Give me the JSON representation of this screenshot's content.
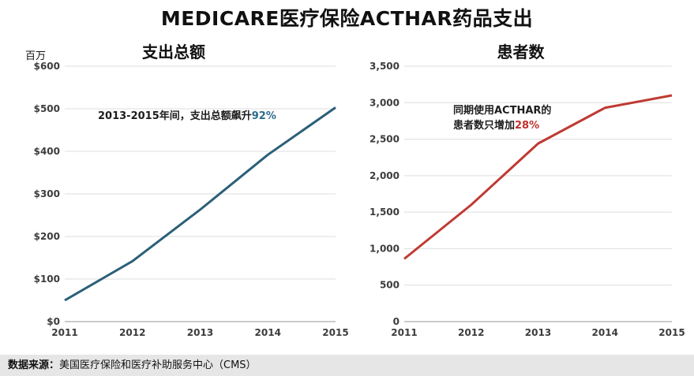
{
  "title": "MEDICARE医疗保险ACTHAR药品支出",
  "footer": {
    "label": "数据来源：",
    "text": "美国医疗保险和医疗补助服务中心（CMS）"
  },
  "chart_data": [
    {
      "type": "line",
      "title": "支出总额",
      "unit_label": "百万",
      "x": [
        2011,
        2012,
        2013,
        2014,
        2015
      ],
      "y_tick_labels": [
        "$0",
        "$100",
        "$200",
        "$300",
        "$400",
        "$500",
        "$600"
      ],
      "ylim": [
        0,
        600
      ],
      "series": [
        {
          "values": [
            50,
            142,
            263,
            392,
            503
          ],
          "color": "#2b5f78"
        }
      ],
      "annotation": {
        "text": "2013-2015年间，支出总额飙升",
        "highlight": "92%"
      },
      "grid": "horizontal"
    },
    {
      "type": "line",
      "title": "患者数",
      "x": [
        2011,
        2012,
        2013,
        2014,
        2015
      ],
      "y_tick_labels": [
        "0",
        "500",
        "1,000",
        "1,500",
        "2,000",
        "2,500",
        "3,000",
        "3,500"
      ],
      "ylim": [
        0,
        3500
      ],
      "series": [
        {
          "values": [
            860,
            1600,
            2440,
            2930,
            3100
          ],
          "color": "#bf3a33"
        }
      ],
      "annotation": {
        "line1": "同期使用ACTHAR的",
        "line2": "患者数只增加",
        "highlight": "28%"
      },
      "grid": "horizontal"
    }
  ]
}
